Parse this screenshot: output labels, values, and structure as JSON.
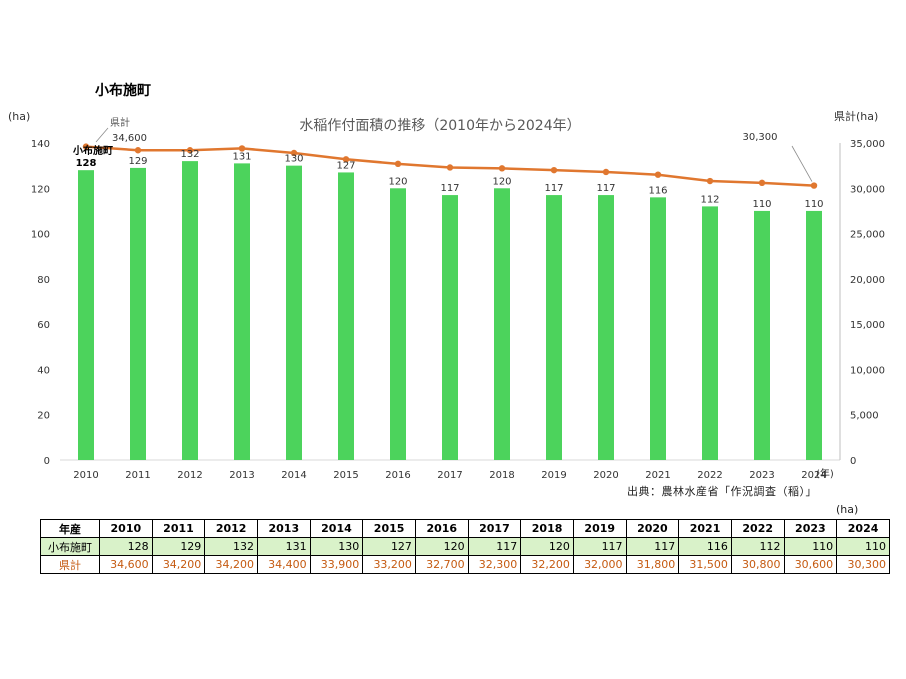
{
  "page": {
    "main_title": "小布施町",
    "source_note": "出典：農林水産省「作況調査（稲）」",
    "table_unit": "(ha)"
  },
  "colors": {
    "bar": "#4cd35c",
    "line": "#e0772f",
    "table_green": "#d9f2c9",
    "pref_text": "#c55a11"
  },
  "chart_data": {
    "type": "bar",
    "title": "水稲作付面積の推移（2010年から2024年）",
    "categories": [
      "2010",
      "2011",
      "2012",
      "2013",
      "2014",
      "2015",
      "2016",
      "2017",
      "2018",
      "2019",
      "2020",
      "2021",
      "2022",
      "2023",
      "2024"
    ],
    "x_unit": "(年)",
    "y_left_unit": "(ha)",
    "y_right_unit": "県計(ha)",
    "ylim_left": [
      0,
      140
    ],
    "ylim_right": [
      0,
      35000
    ],
    "yticks_left": [
      "0",
      "20",
      "40",
      "60",
      "80",
      "100",
      "120",
      "140"
    ],
    "yticks_right": [
      "0",
      "5,000",
      "10,000",
      "15,000",
      "20,000",
      "25,000",
      "30,000",
      "35,000"
    ],
    "series": [
      {
        "name": "小布施町",
        "type": "bar",
        "axis": "left",
        "values": [
          128,
          129,
          132,
          131,
          130,
          127,
          120,
          117,
          120,
          117,
          117,
          116,
          112,
          110,
          110
        ],
        "labels": [
          "128",
          "129",
          "132",
          "131",
          "130",
          "127",
          "120",
          "117",
          "120",
          "117",
          "117",
          "116",
          "112",
          "110",
          "110"
        ]
      },
      {
        "name": "県計",
        "type": "line",
        "axis": "right",
        "values": [
          34600,
          34200,
          34200,
          34400,
          33900,
          33200,
          32700,
          32300,
          32200,
          32000,
          31800,
          31500,
          30800,
          30600,
          30300
        ],
        "first_label": "34,600",
        "last_label": "30,300"
      }
    ],
    "grid": false
  },
  "table": {
    "header_label": "年産",
    "years": [
      "2010",
      "2011",
      "2012",
      "2013",
      "2014",
      "2015",
      "2016",
      "2017",
      "2018",
      "2019",
      "2020",
      "2021",
      "2022",
      "2023",
      "2024"
    ],
    "rows": [
      {
        "label": "小布施町",
        "values": [
          "128",
          "129",
          "132",
          "131",
          "130",
          "127",
          "120",
          "117",
          "120",
          "117",
          "117",
          "116",
          "112",
          "110",
          "110"
        ]
      },
      {
        "label": "県計",
        "values": [
          "34,600",
          "34,200",
          "34,200",
          "34,400",
          "33,900",
          "33,200",
          "32,700",
          "32,300",
          "32,200",
          "32,000",
          "31,800",
          "31,500",
          "30,800",
          "30,600",
          "30,300"
        ]
      }
    ]
  }
}
